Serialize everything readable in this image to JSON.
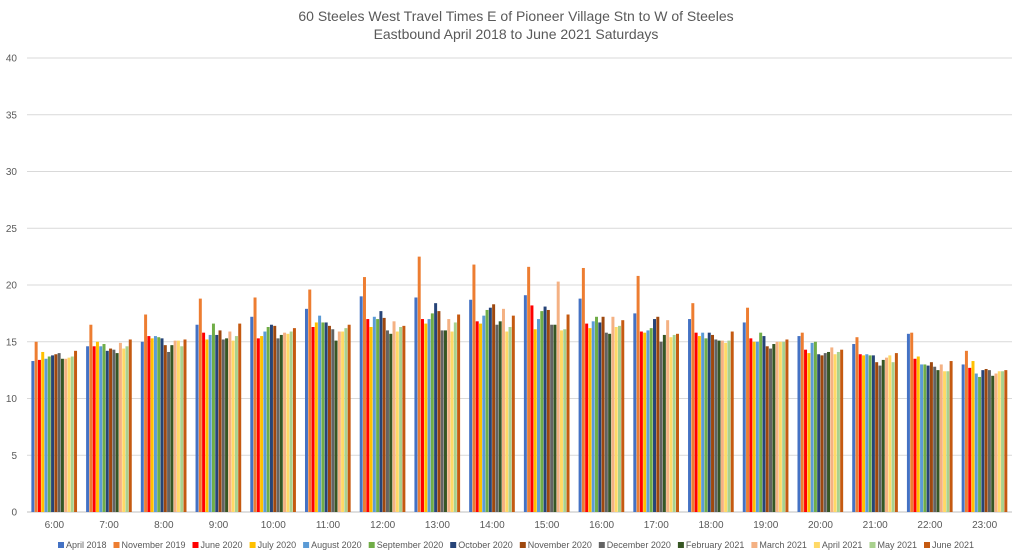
{
  "chart_data": {
    "type": "bar",
    "title": "60 Steeles West Travel Times E of Pioneer Village Stn to W of Steeles",
    "subtitle": "Eastbound April 2018 to June 2021 Saturdays",
    "xlabel": "",
    "ylabel": "",
    "ylim": [
      0,
      40
    ],
    "yticks": [
      "0",
      "5",
      "10",
      "15",
      "20",
      "25",
      "30",
      "35",
      "40"
    ],
    "grid": true,
    "legend_position": "bottom",
    "categories": [
      "6:00",
      "7:00",
      "8:00",
      "9:00",
      "10:00",
      "11:00",
      "12:00",
      "13:00",
      "14:00",
      "15:00",
      "16:00",
      "17:00",
      "18:00",
      "19:00",
      "20:00",
      "21:00",
      "22:00",
      "23:00"
    ],
    "series": [
      {
        "name": "April 2018",
        "color": "#4472C4",
        "values": [
          13.3,
          14.6,
          15.0,
          16.5,
          17.2,
          17.9,
          19.0,
          18.9,
          18.7,
          19.1,
          18.8,
          17.5,
          17.0,
          16.7,
          15.5,
          14.8,
          15.7,
          13.0
        ]
      },
      {
        "name": "November 2019",
        "color": "#ED7D31",
        "values": [
          15.0,
          16.5,
          17.4,
          18.8,
          18.9,
          19.6,
          20.7,
          22.5,
          21.8,
          21.6,
          21.5,
          20.8,
          18.4,
          18.0,
          15.8,
          15.4,
          15.8,
          14.2
        ]
      },
      {
        "name": "June 2020",
        "color": "#FF0000",
        "values": [
          13.4,
          14.6,
          15.5,
          15.8,
          15.3,
          16.3,
          17.0,
          17.0,
          16.8,
          18.2,
          16.6,
          15.9,
          15.8,
          15.3,
          14.3,
          13.9,
          13.5,
          12.7
        ]
      },
      {
        "name": "July 2020",
        "color": "#FFC000",
        "values": [
          14.1,
          15.0,
          15.3,
          15.2,
          15.5,
          16.7,
          16.3,
          16.6,
          16.6,
          16.1,
          16.2,
          15.8,
          15.5,
          15.0,
          14.0,
          13.8,
          13.7,
          13.3
        ]
      },
      {
        "name": "August 2020",
        "color": "#5B9BD5",
        "values": [
          13.5,
          14.6,
          15.5,
          15.6,
          15.9,
          17.3,
          17.2,
          17.0,
          17.3,
          17.0,
          16.8,
          16.0,
          15.8,
          15.0,
          14.9,
          13.9,
          13.0,
          12.2
        ]
      },
      {
        "name": "September 2020",
        "color": "#70AD47",
        "values": [
          13.7,
          14.8,
          15.4,
          16.6,
          16.3,
          16.7,
          17.0,
          17.5,
          17.8,
          17.7,
          17.2,
          16.2,
          15.3,
          15.8,
          15.0,
          13.8,
          13.0,
          11.9
        ]
      },
      {
        "name": "October 2020",
        "color": "#264478",
        "values": [
          13.8,
          14.2,
          15.3,
          15.6,
          16.5,
          16.7,
          17.7,
          18.4,
          18.0,
          18.1,
          16.7,
          17.0,
          15.8,
          15.5,
          13.9,
          13.8,
          12.9,
          12.5
        ]
      },
      {
        "name": "November 2020",
        "color": "#9E480E",
        "values": [
          13.9,
          14.4,
          14.7,
          16.0,
          16.4,
          16.4,
          17.1,
          17.7,
          18.3,
          17.8,
          17.2,
          17.2,
          15.6,
          14.6,
          13.8,
          13.2,
          13.2,
          12.6
        ]
      },
      {
        "name": "December 2020",
        "color": "#636363",
        "values": [
          14.0,
          14.3,
          14.1,
          15.2,
          15.3,
          16.1,
          16.0,
          16.0,
          16.5,
          16.5,
          15.8,
          15.0,
          15.2,
          14.4,
          14.0,
          12.9,
          12.8,
          12.5
        ]
      },
      {
        "name": "February 2021",
        "color": "#375623",
        "values": [
          13.5,
          14.0,
          14.7,
          15.3,
          15.6,
          15.1,
          15.7,
          16.0,
          16.8,
          16.5,
          15.7,
          15.6,
          15.1,
          14.8,
          14.1,
          13.4,
          12.5,
          12.0
        ]
      },
      {
        "name": "March 2021",
        "color": "#F4B183",
        "values": [
          13.5,
          14.9,
          15.1,
          15.9,
          15.8,
          15.9,
          16.8,
          17.0,
          17.9,
          20.3,
          17.2,
          16.9,
          15.1,
          15.0,
          14.5,
          13.6,
          13.0,
          12.2
        ]
      },
      {
        "name": "April 2021",
        "color": "#FFD966",
        "values": [
          13.6,
          14.4,
          15.1,
          15.1,
          15.7,
          15.9,
          15.9,
          15.9,
          15.9,
          16.0,
          16.3,
          15.4,
          14.9,
          15.0,
          13.9,
          13.8,
          12.4,
          12.4
        ]
      },
      {
        "name": "May 2021",
        "color": "#A9D18E",
        "values": [
          13.7,
          14.6,
          14.6,
          15.5,
          15.9,
          16.2,
          16.3,
          16.7,
          16.3,
          16.1,
          16.4,
          15.6,
          15.1,
          15.0,
          14.1,
          13.2,
          12.4,
          12.4
        ]
      },
      {
        "name": "June 2021",
        "color": "#C55A11",
        "values": [
          14.2,
          15.2,
          15.2,
          16.6,
          16.2,
          16.5,
          16.4,
          17.4,
          17.3,
          17.4,
          16.9,
          15.7,
          15.9,
          15.2,
          14.3,
          14.0,
          13.3,
          12.5
        ]
      }
    ]
  }
}
